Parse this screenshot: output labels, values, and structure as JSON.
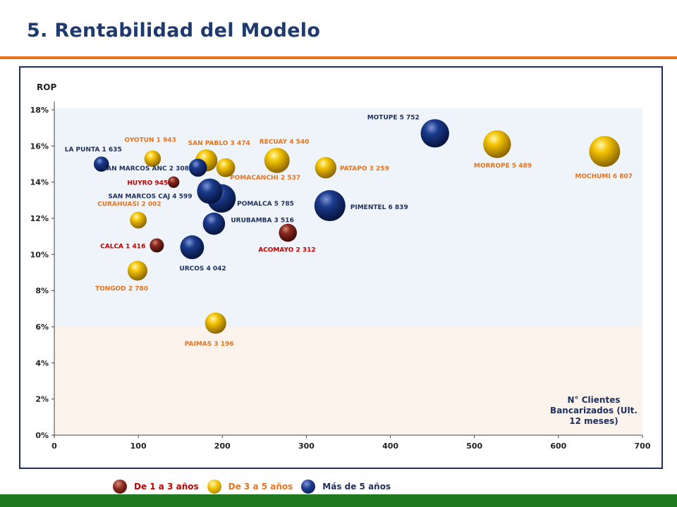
{
  "title": "5. Rentabilidad del Modelo",
  "legend": [
    {
      "label": "De 1 a 3 años",
      "color": "#8b1a1a",
      "text_color": "#c00000",
      "ball": "url(#g-red)"
    },
    {
      "label": "De 3 a 5 años",
      "color": "#e6b800",
      "text_color": "#e8731c",
      "ball": "url(#g-gold)"
    },
    {
      "label": "Más de 5 años",
      "color": "#0d2a6b",
      "text_color": "#1f2f5c",
      "ball": "url(#g-blue)"
    }
  ],
  "chart_data": {
    "type": "scatter",
    "title": "",
    "ylabel": "ROP",
    "xlabel": "N° Clientes Bancarizados (Ult. 12 meses)",
    "xlim": [
      0,
      700
    ],
    "ylim": [
      0,
      18
    ],
    "x_ticks": [
      "0",
      "100",
      "200",
      "300",
      "400",
      "500",
      "600",
      "700"
    ],
    "y_ticks": [
      "0%",
      "2%",
      "4%",
      "6%",
      "8%",
      "10%",
      "12%",
      "14%",
      "16%",
      "18%"
    ],
    "bands": [
      {
        "from": 0,
        "to": 6,
        "color": "#fbf3ec"
      },
      {
        "from": 6,
        "to": 18.2,
        "color": "#eef4f9"
      }
    ],
    "series": [
      {
        "name": "De 1 a 3 años",
        "color": "#c00000",
        "points": [
          {
            "label": "HUYRO  945",
            "x": 142,
            "y": 14.0,
            "size": 945
          },
          {
            "label": "CALCA  1 416",
            "x": 122,
            "y": 10.5,
            "size": 1416
          },
          {
            "label": "ACOMAYO  2 312",
            "x": 278,
            "y": 11.2,
            "size": 2312
          }
        ]
      },
      {
        "name": "De 3 a 5 años",
        "color": "#e8731c",
        "points": [
          {
            "label": "OYOTUN  1 943",
            "x": 117,
            "y": 15.3,
            "size": 1943
          },
          {
            "label": "SAN PABLO  3 474",
            "x": 181,
            "y": 15.2,
            "size": 3474
          },
          {
            "label": "RECUAY  4 540",
            "x": 265,
            "y": 15.2,
            "size": 4540
          },
          {
            "label": "POMACANCHI  2 537",
            "x": 204,
            "y": 14.8,
            "size": 2537
          },
          {
            "label": "PATAPO  3 259",
            "x": 323,
            "y": 14.8,
            "size": 3259
          },
          {
            "label": "MORROPE  5 489",
            "x": 527,
            "y": 16.1,
            "size": 5489
          },
          {
            "label": "MOCHUMI  6 807",
            "x": 655,
            "y": 15.7,
            "size": 6807
          },
          {
            "label": "CURAHUASI   2 002",
            "x": 100,
            "y": 11.9,
            "size": 2002
          },
          {
            "label": "TONGOD  2 780",
            "x": 99,
            "y": 9.1,
            "size": 2780
          },
          {
            "label": "PAIMAS  3 196",
            "x": 192,
            "y": 6.2,
            "size": 3196
          }
        ]
      },
      {
        "name": "Más de 5 años",
        "color": "#1f2f5c",
        "points": [
          {
            "label": "LA PUNTA  1 635",
            "x": 56,
            "y": 15.0,
            "size": 1635
          },
          {
            "label": "SAN MARCOS ANC  2 308",
            "x": 171,
            "y": 14.8,
            "size": 2308
          },
          {
            "label": "SAN MARCOS CAJ  4 599",
            "x": 185,
            "y": 13.5,
            "size": 4599
          },
          {
            "label": "POMALCA  5 785",
            "x": 199,
            "y": 13.1,
            "size": 5785
          },
          {
            "label": "URUBAMBA  3 516",
            "x": 190,
            "y": 11.7,
            "size": 3516
          },
          {
            "label": "URCOS  4 042",
            "x": 164,
            "y": 10.4,
            "size": 4042
          },
          {
            "label": "MOTUPE  5 752",
            "x": 453,
            "y": 16.7,
            "size": 5752
          },
          {
            "label": "PIMENTEL  6 839",
            "x": 328,
            "y": 12.7,
            "size": 6839
          }
        ]
      }
    ]
  }
}
